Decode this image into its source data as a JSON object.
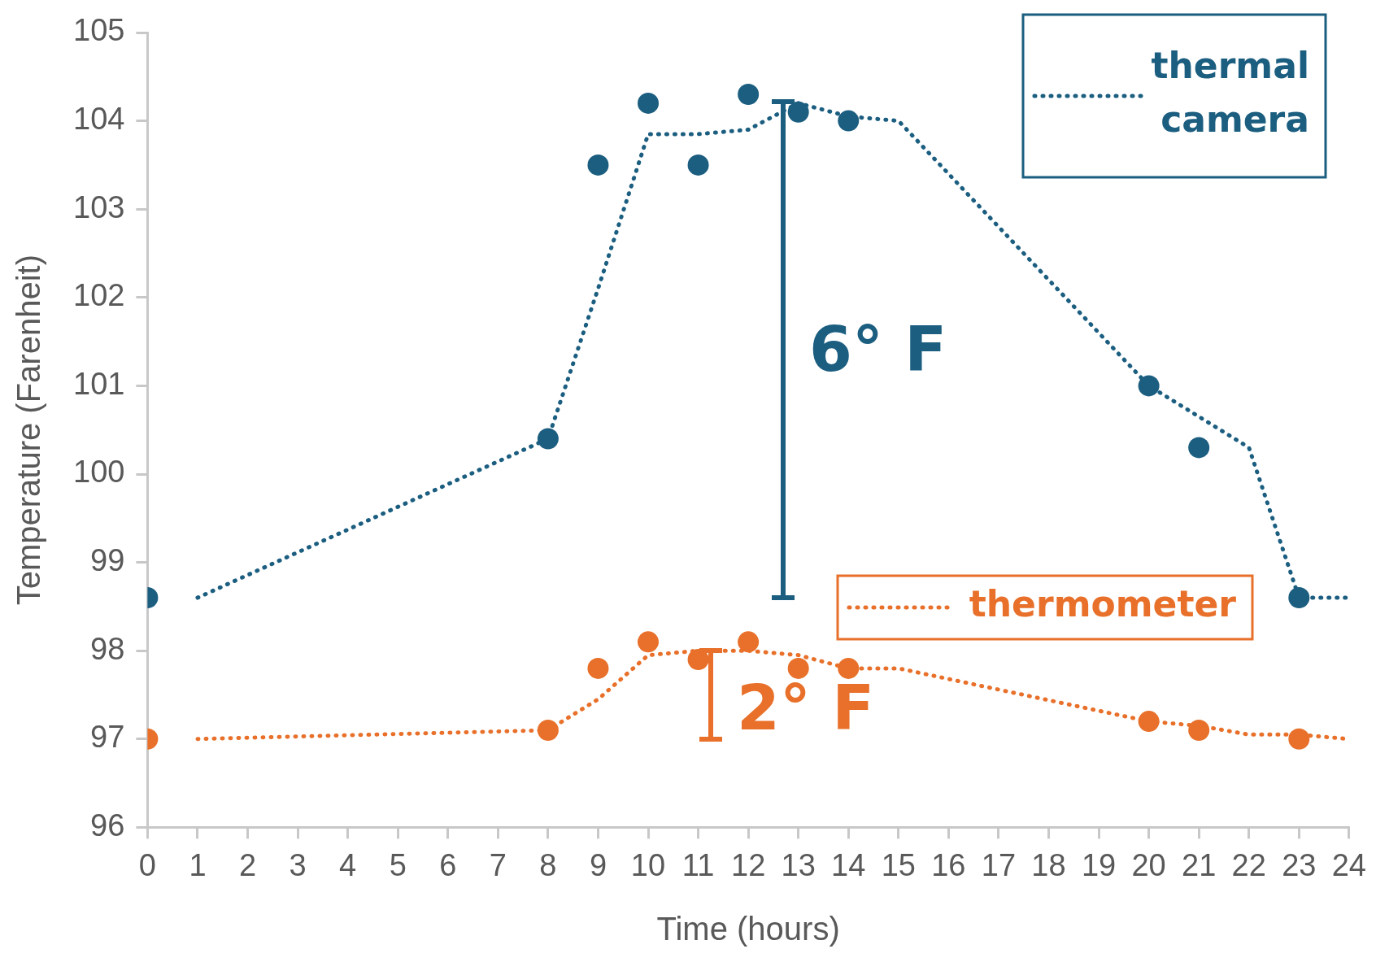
{
  "chart_data": {
    "type": "scatter",
    "xlabel": "Time (hours)",
    "ylabel": "Temperature (Farenheit)",
    "xlim": [
      0,
      24
    ],
    "xticks": [
      0,
      1,
      2,
      3,
      4,
      5,
      6,
      7,
      8,
      9,
      10,
      11,
      12,
      13,
      14,
      15,
      16,
      17,
      18,
      19,
      20,
      21,
      22,
      23,
      24
    ],
    "ylim": [
      96,
      105
    ],
    "yticks": [
      96,
      97,
      98,
      99,
      100,
      101,
      102,
      103,
      104,
      105
    ],
    "legend": "top right",
    "series": [
      {
        "type": "scatter",
        "marker": "circle",
        "color": "#1b5e80",
        "x": [
          0,
          8,
          9,
          10,
          11,
          12,
          13,
          14,
          20,
          21,
          23
        ],
        "values": [
          98.6,
          100.4,
          103.5,
          104.2,
          103.5,
          104.3,
          104.1,
          104.0,
          101.0,
          100.3,
          98.6
        ]
      },
      {
        "type": "line",
        "marker": "none",
        "name": "thermal camera",
        "color": "#1b5e80",
        "line_style": "dotted",
        "x": [
          1,
          8,
          9,
          10,
          11,
          12,
          13,
          14,
          15,
          20,
          21,
          22,
          23,
          24
        ],
        "values": [
          98.6,
          100.4,
          102.1,
          103.85,
          103.85,
          103.9,
          104.2,
          104.05,
          104.0,
          101.0,
          100.65,
          100.3,
          98.6,
          98.6
        ]
      },
      {
        "type": "scatter",
        "marker": "circle",
        "color": "#e8702a",
        "x": [
          0,
          8,
          9,
          10,
          11,
          12,
          13,
          14,
          20,
          21,
          23
        ],
        "values": [
          97.0,
          97.1,
          97.8,
          98.1,
          97.9,
          98.1,
          97.8,
          97.8,
          97.2,
          97.1,
          97.0
        ]
      },
      {
        "type": "line",
        "marker": "none",
        "name": "thermometer",
        "color": "#e8702a",
        "line_style": "dotted",
        "x": [
          1,
          8,
          9,
          10,
          11,
          12,
          13,
          14,
          15,
          20,
          21,
          22,
          23,
          24
        ],
        "values": [
          97.0,
          97.1,
          97.45,
          97.95,
          98.0,
          98.0,
          97.95,
          97.8,
          97.8,
          97.2,
          97.15,
          97.05,
          97.05,
          97.0
        ]
      }
    ],
    "annotations": [
      "6° F",
      "2° F"
    ]
  }
}
